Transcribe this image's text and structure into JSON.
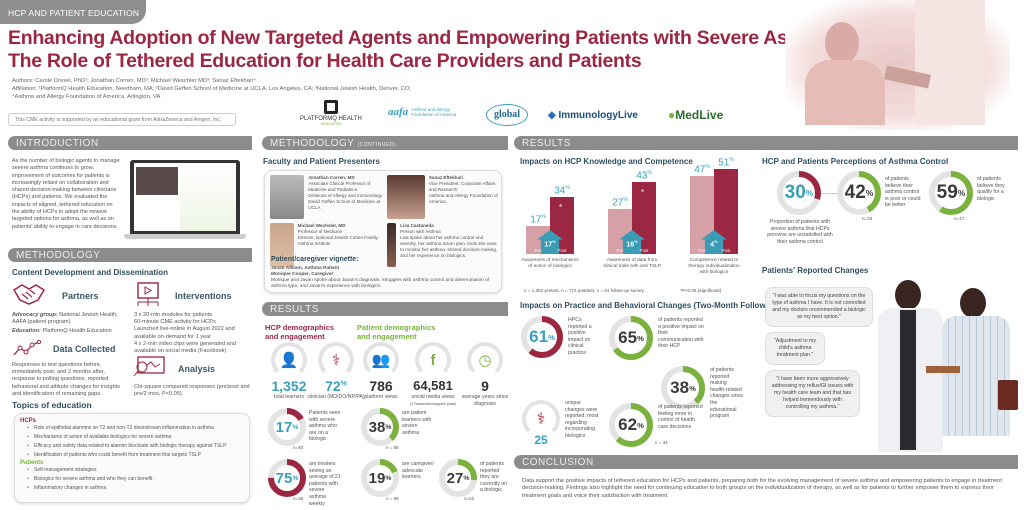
{
  "header": {
    "tag": "HCP AND PATIENT EDUCATION",
    "title_line1": "Enhancing Adoption of New Targeted Agents and Empowering Patients with Severe Asthma:",
    "title_line2": "The Role of Tethered Education for Health Care Providers and Patients",
    "authors": "Authors: Carole Drexel, PhD¹; Jonathan Corren, MD²; Michael Weschler MD³; Sanaz Eftekhari⁴",
    "affiliation": "Affiliation: ¹PlatformQ Health Education, Needham, MA; ²David Geffen School of Medicine at UCLA, Los Angeles, CA; ³National Jewish Health, Denver, CO;",
    "affiliation2": "⁴Asthma and Allergy Foundation of America, Arlington, VA",
    "support": "This CME activity is supported by an educational grant from AstraZeneca and Amgen, Inc.",
    "logos": [
      "PLATFORMQ HEALTH",
      "Asthma and Allergy Foundation of America",
      "global",
      "ImmunologyLive",
      "MedLive"
    ],
    "logo_sub": "EDUCATION"
  },
  "colors": {
    "maroon": "#9b2743",
    "teal": "#3aa0b8",
    "green": "#7ab23d",
    "gray": "#8c8c8c"
  },
  "intro": {
    "heading": "INTRODUCTION",
    "text": "As the number of biologic agents to manage severe asthma continues to grow, improvement of outcomes for patients is increasingly reliant on collaboration and shared decision-making between clinicians (HCPs) and patients. We evaluated the impacts of aligned, tethered education on the ability of HCPs to adopt the newest targeted options for asthma, as well as on patients' ability to engage in care decisions."
  },
  "methodology": {
    "heading": "METHODOLOGY",
    "subheading": "Content Development and Dissemination",
    "partners": {
      "label": "Partners",
      "l1b": "Advocacy group:",
      "l1": " National Jewish Health; AAFA (patient program)",
      "l2b": "Education:",
      "l2": " PlatformQ Health Education"
    },
    "interventions": {
      "label": "Interventions",
      "lines": [
        "3 x 20-min modules for patients",
        "60-minute CME activity for HCPs",
        "Launched live-online in August 2022 and available on-demand for 1 year",
        "4 x 2-min video clips were generated and available on social media (Facebook)"
      ]
    },
    "data_collected": {
      "label": "Data Collected",
      "text": "Responses to test questions before, immediately post, and 2 months after, response to polling questions, reported behavioral and attitude changes for insights and identification of remaining gaps."
    },
    "analysis": {
      "label": "Analysis",
      "text": "Chi-square compared responses (pre/post and pre/2 mos, P<0.05)."
    },
    "topics": {
      "heading": "Topics of education",
      "hcp_label": "HCPs",
      "hcp": [
        "Role of epithelial alarmins on T2 and non-T2 downstream inflammation in asthma",
        "Mechanisms of action of available biologics for severe asthma",
        "Efficacy and safety data related to alarmin blockade with biologic therapy against TSLP",
        "Identification of patients who could benefit from treatment that targets TSLP"
      ],
      "patients_label": "Patients",
      "patients": [
        "Self-management strategies",
        "Biologics for severe asthma and who they can benefit",
        "Inflammatory changes in asthma"
      ]
    }
  },
  "method_cont": {
    "heading": "METHODOLOGY",
    "heading_small": "(CONTINUED)",
    "subheading": "Faculty and Patient Presenters",
    "faculty": [
      {
        "name": "Jonathan Corren, MD",
        "lines": [
          "Associate Clinical Professor of Medicine and Pediatrics",
          "Divisions of Allergy and Immunology",
          "David Geffen School of Medicine at UCLA"
        ]
      },
      {
        "name": "Sanaz Eftekhari",
        "lines": [
          "Vice President, Corporate Affairs and Research",
          "Asthma and Allergy Foundation of America"
        ]
      },
      {
        "name": "Michael Wechsler, MD",
        "lines": [
          "Professor of Medicine",
          "Director, National Jewish Cohen Family Asthma Institute"
        ]
      },
      {
        "name": "Lisa Castaneda",
        "lines": [
          "Person with Asthma",
          "Lisa spoke about her asthma control and severity, her asthma action plan, tools she uses to monitor her asthma, shared decision-making, and her experience on biologics."
        ]
      }
    ],
    "vignette_title": "Patient/caregiver vignette:",
    "vignette_names": [
      "Javan Allison, Asthma Patient",
      "Monique Cooper, Caregiver"
    ],
    "vignette_text": "Monique and Javan spoke about Javan's diagnosis, struggles with asthma control and determination of asthma type, and Javan's experience with biologics."
  },
  "results_left": {
    "heading": "RESULTS",
    "hcp_title": "HCP demographics and engagement",
    "patient_title": "Patient demographics and engagement",
    "stats": [
      {
        "value": "1,352",
        "label": "total learners",
        "icon": "person-icon"
      },
      {
        "value": "72",
        "unit": "%",
        "label": "clinician (MD/DO/NP/PA)",
        "icon": "doctor-icon"
      },
      {
        "value": "786",
        "label": "platform views",
        "icon": "group-icon"
      },
      {
        "value": "64,581",
        "label": "social media views",
        "note": "(4 Facebook/Instagram posts)",
        "icon": "laptop-facebook-icon"
      },
      {
        "value": "9",
        "label": "average years since diagnosis",
        "icon": "clock-icon"
      }
    ],
    "donuts": [
      {
        "pct": 17,
        "text": "Patients seen with severe asthma who are on a biologic",
        "n": "n=40",
        "color": "maroon",
        "numcolor": "teal"
      },
      {
        "pct": 38,
        "text": "are patient learners with severe asthma",
        "n": "n = 58",
        "color": "green",
        "numcolor": "dark"
      },
      {
        "pct": 75,
        "text": "are treaters seeing an average of 21 patients with severe asthma weekly",
        "n": "n=36",
        "color": "maroon",
        "numcolor": "teal"
      },
      {
        "pct": 19,
        "text": "are caregiver/ advocate learners",
        "n": "n = 58",
        "color": "green",
        "numcolor": "dark"
      },
      {
        "pct": 27,
        "text": "of patients reported they are currently on a biologic",
        "n": "n=22",
        "color": "green",
        "numcolor": "dark"
      }
    ]
  },
  "results_right": {
    "heading": "RESULTS",
    "knowledge": {
      "title": "Impacts on HCP Knowledge and Competence",
      "chart_data": {
        "type": "bar",
        "categories": [
          "Awareness of mechanisms of action of biologics",
          "Awareness of data from clinical trials with anti TSLP",
          "Competence related to therapy individualization with biologics"
        ],
        "series": [
          {
            "name": "Pre",
            "values": [
              17,
              27,
              47
            ]
          },
          {
            "name": "Post",
            "values": [
              34,
              43,
              51
            ]
          }
        ],
        "increase": [
          17,
          16,
          4
        ],
        "significant": [
          true,
          true,
          false
        ],
        "unit": "%",
        "ylim": [
          0,
          60
        ]
      },
      "pre_label": "Pre",
      "post_label": "Post",
      "increase_label": "increase",
      "star": "*",
      "footnote": "n = 1,352 pretest, n = 773 posttest, n = 61 follow-up survey",
      "sig_note": "*P<0.05 (significant)"
    },
    "practice": {
      "title": "Impacts on Practice and Behavioral Changes (Two-Month Follow Up)",
      "donuts": [
        {
          "pct": 61,
          "text": "HPCs reported a positive impact on clinical practice",
          "color": "maroon",
          "numcolor": "teal"
        },
        {
          "pct": 65,
          "text": "of patients reported a positive impact on their communication with their HCP",
          "color": "green",
          "numcolor": "dark"
        },
        {
          "pct": 38,
          "text": "of patients reported making health-related changes since the educational program",
          "color": "green",
          "numcolor": "dark"
        },
        {
          "pct": 62,
          "text": "of patients reported feeling more in control of health care decisions",
          "color": "green",
          "numcolor": "dark"
        }
      ],
      "unique_value": "25",
      "unique_text": "unique changes were reported, most regarding incorporating biologics",
      "n": "n = 34"
    },
    "perceptions": {
      "title": "HCP and Patients Perceptions of Asthma Control",
      "donuts": [
        {
          "pct": 30,
          "text": "Proportion of patients with severe asthma that HCPs perceive are unsatisfied with their asthma control",
          "color": "maroon",
          "numcolor": "teal"
        },
        {
          "pct": 42,
          "text": "of patients believe their asthma control is poor or could be better",
          "n": "n=33",
          "color": "green",
          "numcolor": "dark"
        },
        {
          "pct": 59,
          "text": "of patients believe they qualify for a biologic",
          "n": "n=17",
          "color": "green",
          "numcolor": "dark"
        }
      ]
    },
    "changes": {
      "title": "Patients' Reported Changes",
      "quotes": [
        "\"I was able to focus my questions on the type of asthma I have. It is not controlled and my doctors recommended a biologic as my best option.\"",
        "\"Adjustment to my child's asthma treatment plan.\"",
        "\"I have been more aggressively addressing my reflux/GI issues with my health care team and that has helped tremendously with controlling my asthma.\""
      ]
    }
  },
  "conclusion": {
    "heading": "CONCLUSION",
    "text": "Data support the positive impacts of tethered education for HCPs and patients, preparing both for the evolving management of severe asthma and empowering patients to engage in treatment decision-making. Findings also highlight the need for continuing education to both groups on the individualization of therapy, as well as for patients to further empower them to express their treatment goals and voice their satisfaction with treatment."
  }
}
